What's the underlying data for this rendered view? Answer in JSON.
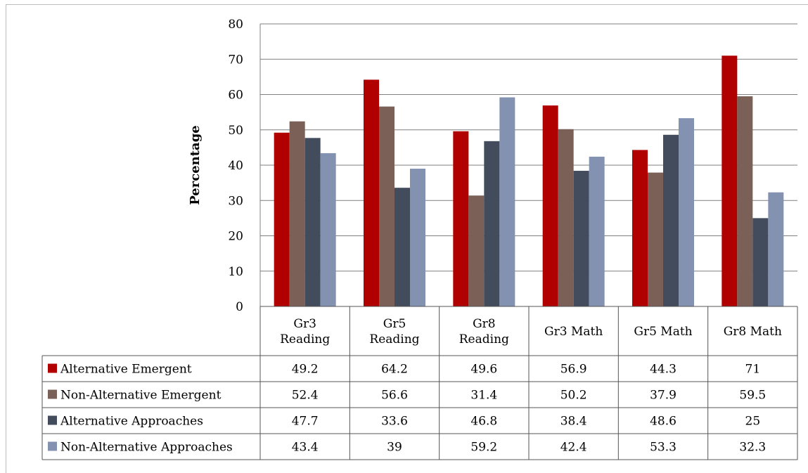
{
  "chart_data": {
    "type": "bar",
    "title": "",
    "xlabel": "",
    "ylabel": "Percentage",
    "ylim": [
      0,
      80
    ],
    "yticks": [
      "0",
      "10",
      "20",
      "30",
      "40",
      "50",
      "60",
      "70",
      "80"
    ],
    "grid": true,
    "legend": "data-table-below",
    "categories": [
      [
        "Gr3",
        "Reading"
      ],
      [
        "Gr5",
        "Reading"
      ],
      [
        "Gr8",
        "Reading"
      ],
      [
        "Gr3 Math"
      ],
      [
        "Gr5 Math"
      ],
      [
        "Gr8 Math"
      ]
    ],
    "series": [
      {
        "name": "Alternative Emergent",
        "color": "#b00000",
        "values": [
          49.2,
          64.2,
          49.6,
          56.9,
          44.3,
          71
        ],
        "labels": [
          "49.2",
          "64.2",
          "49.6",
          "56.9",
          "44.3",
          "71"
        ]
      },
      {
        "name": "Non-Alternative Emergent",
        "color": "#7a6056",
        "values": [
          52.4,
          56.6,
          31.4,
          50.2,
          37.9,
          59.5
        ],
        "labels": [
          "52.4",
          "56.6",
          "31.4",
          "50.2",
          "37.9",
          "59.5"
        ]
      },
      {
        "name": "Alternative Approaches",
        "color": "#424c5c",
        "values": [
          47.7,
          33.6,
          46.8,
          38.4,
          48.6,
          25
        ],
        "labels": [
          "47.7",
          "33.6",
          "46.8",
          "38.4",
          "48.6",
          "25"
        ]
      },
      {
        "name": "Non-Alternative Approaches",
        "color": "#8392b0",
        "values": [
          43.4,
          39,
          59.2,
          42.4,
          53.3,
          32.3
        ],
        "labels": [
          "43.4",
          "39",
          "59.2",
          "42.4",
          "53.3",
          "32.3"
        ]
      }
    ]
  }
}
